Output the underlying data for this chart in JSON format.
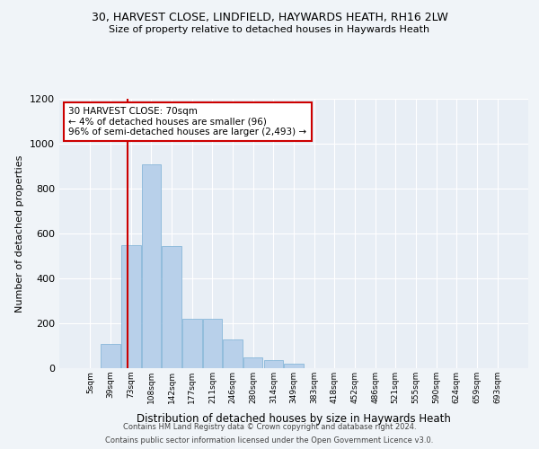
{
  "title_line1": "30, HARVEST CLOSE, LINDFIELD, HAYWARDS HEATH, RH16 2LW",
  "title_line2": "Size of property relative to detached houses in Haywards Heath",
  "xlabel": "Distribution of detached houses by size in Haywards Heath",
  "ylabel": "Number of detached properties",
  "bar_labels": [
    "5sqm",
    "39sqm",
    "73sqm",
    "108sqm",
    "142sqm",
    "177sqm",
    "211sqm",
    "246sqm",
    "280sqm",
    "314sqm",
    "349sqm",
    "383sqm",
    "418sqm",
    "452sqm",
    "486sqm",
    "521sqm",
    "555sqm",
    "590sqm",
    "624sqm",
    "659sqm",
    "693sqm"
  ],
  "bar_values": [
    0,
    108,
    548,
    910,
    545,
    220,
    220,
    130,
    50,
    35,
    20,
    0,
    0,
    0,
    0,
    0,
    0,
    0,
    0,
    0,
    0
  ],
  "bar_color": "#b8d0ea",
  "bar_edge_color": "#7aafd4",
  "bg_color": "#e8eef5",
  "grid_color": "#ffffff",
  "vline_color": "#cc0000",
  "annotation_text": "30 HARVEST CLOSE: 70sqm\n← 4% of detached houses are smaller (96)\n96% of semi-detached houses are larger (2,493) →",
  "annotation_box_color": "#ffffff",
  "annotation_box_edge": "#cc0000",
  "ylim": [
    0,
    1200
  ],
  "yticks": [
    0,
    200,
    400,
    600,
    800,
    1000,
    1200
  ],
  "footer_line1": "Contains HM Land Registry data © Crown copyright and database right 2024.",
  "footer_line2": "Contains public sector information licensed under the Open Government Licence v3.0."
}
